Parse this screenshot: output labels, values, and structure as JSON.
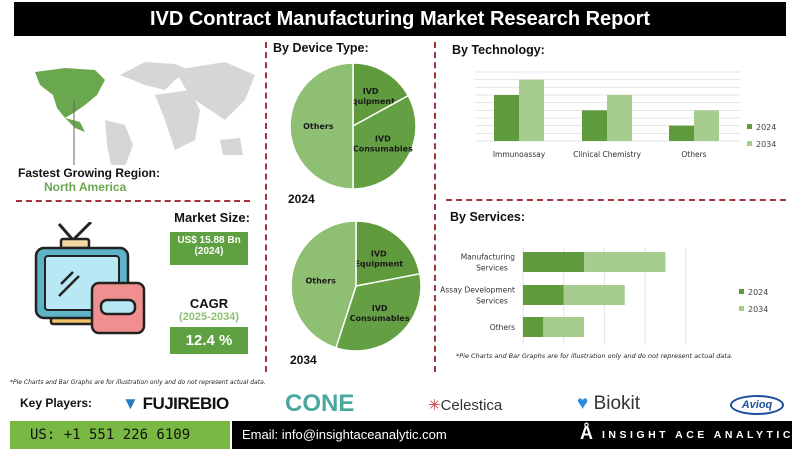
{
  "title": "IVD Contract Manufacturing Market Research Report",
  "region": {
    "label": "Fastest Growing Region:",
    "value": "North America"
  },
  "market_size": {
    "label": "Market Size:",
    "value": "US$ 15.88 Bn",
    "year": "(2024)"
  },
  "cagr": {
    "label": "CAGR",
    "period": "(2025-2034)",
    "value": "12.4 %"
  },
  "device": {
    "title": "By Device Type:"
  },
  "technology": {
    "title": "By Technology:"
  },
  "services": {
    "title": "By Services:"
  },
  "footnote": "*Pie Charts and Bar Graphs are for illustration only and do not represent actual data.",
  "key_players": {
    "label": "Key Players:",
    "logos": [
      "FUJIREBIO",
      "CONE",
      "Celestica",
      "Biokit",
      "Avioq"
    ]
  },
  "footer": {
    "phone": "US: +1 551 226 6109",
    "email": "Email: info@insightaceanalytic.com",
    "brand": "INSIGHT ACE ANALYTIC"
  },
  "colors": {
    "dark_green": "#5f9a3c",
    "light_green": "#a7cc8f",
    "mid_green": "#64a043",
    "pie_others": "#8fbf72",
    "accent_red": "#a3343d"
  },
  "chart_data": [
    {
      "type": "pie",
      "label": "2024",
      "slices": [
        {
          "name": "IVD Equipment",
          "value": 17
        },
        {
          "name": "IVD Consumables",
          "value": 33
        },
        {
          "name": "Others",
          "value": 50
        }
      ]
    },
    {
      "type": "pie",
      "label": "2034",
      "slices": [
        {
          "name": "IVD Equipment",
          "value": 22
        },
        {
          "name": "IVD Consumables",
          "value": 33
        },
        {
          "name": "Others",
          "value": 45
        }
      ]
    },
    {
      "type": "bar",
      "title": "By Technology:",
      "categories": [
        "Immunoassay",
        "Clinical Chemistry",
        "Others"
      ],
      "series": [
        {
          "name": "2024",
          "values": [
            6,
            4,
            2
          ]
        },
        {
          "name": "2034",
          "values": [
            8,
            6,
            4
          ]
        }
      ],
      "ylim": [
        0,
        9
      ],
      "grid": true,
      "legend": "right"
    },
    {
      "type": "bar",
      "orientation": "horizontal",
      "stacked": true,
      "title": "By Services:",
      "categories": [
        "Manufacturing Services",
        "Assay Development Services",
        "Others"
      ],
      "series": [
        {
          "name": "2024",
          "values": [
            1.5,
            1.0,
            0.5
          ]
        },
        {
          "name": "2034",
          "values": [
            2.0,
            1.5,
            1.0
          ]
        }
      ],
      "xlim": [
        0,
        4
      ],
      "grid": true,
      "legend": "right"
    }
  ]
}
